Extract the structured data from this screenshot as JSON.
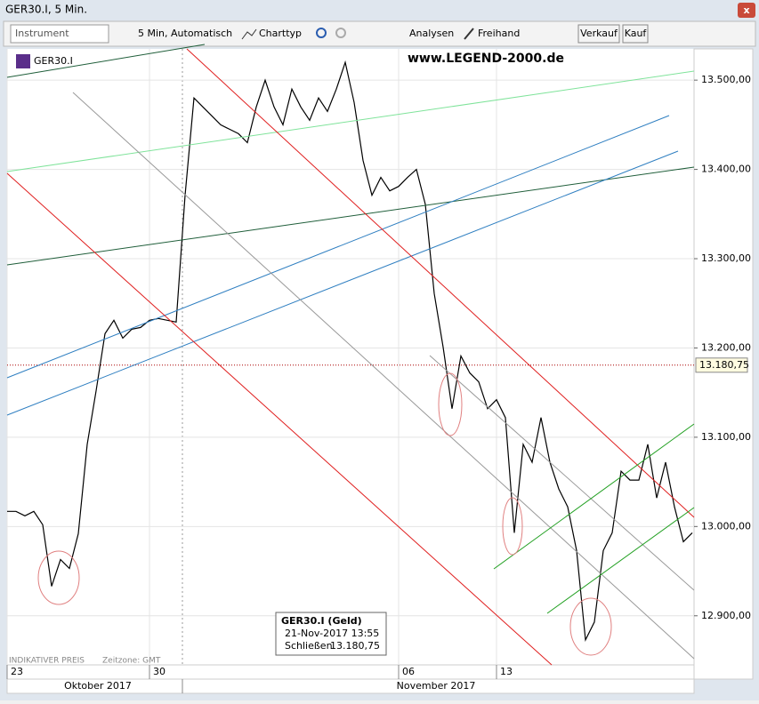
{
  "window": {
    "title": "GER30.I, 5 Min."
  },
  "toolbar": {
    "instrument": "Instrument",
    "interval": "5 Min,  Automatisch",
    "chart_type": "Charttyp",
    "analyses": "Analysen",
    "freehand": "Freihand",
    "sell": "Verkauf",
    "buy": "Kauf"
  },
  "symbol": "GER30.I",
  "watermark": "www.LEGEND-2000.de",
  "footer": {
    "price_note": "INDIKATIVER PREIS",
    "timezone": "Zeitzone: GMT",
    "months": [
      "Oktober 2017",
      "November 2017"
    ]
  },
  "tooltip": {
    "title": "GER30.I (Geld)",
    "time": "21-Nov-2017 13:55",
    "field": "Schließen",
    "price": "13.180,75"
  },
  "chart_data": {
    "type": "line",
    "color": "#000000",
    "categories": [
      "23",
      null,
      null,
      null,
      null,
      null,
      null,
      null,
      null,
      null,
      null,
      null,
      null,
      null,
      null,
      null,
      "30",
      null,
      null,
      null,
      null,
      null,
      null,
      null,
      null,
      null,
      null,
      null,
      null,
      null,
      null,
      null,
      null,
      null,
      null,
      null,
      null,
      null,
      null,
      null,
      null,
      null,
      null,
      null,
      "06",
      null,
      null,
      null,
      null,
      null,
      null,
      null,
      null,
      null,
      null,
      "13",
      null,
      null,
      null,
      null,
      null,
      null,
      null,
      null,
      null,
      null,
      null,
      null,
      null,
      null,
      null,
      null,
      null,
      null,
      null,
      null,
      null,
      null
    ],
    "values": [
      13017,
      13017,
      13012,
      13017,
      13002,
      12933,
      12963,
      12953,
      12992,
      13092,
      13152,
      13216,
      13231,
      13211,
      13221,
      13223,
      13231,
      13233,
      13231,
      13229,
      13371,
      13480,
      13470,
      13460,
      13450,
      13445,
      13440,
      13430,
      13470,
      13500,
      13470,
      13450,
      13490,
      13470,
      13455,
      13480,
      13465,
      13490,
      13520,
      13475,
      13410,
      13371,
      13391,
      13376,
      13381,
      13391,
      13400,
      13361,
      13261,
      13201,
      13132,
      13191,
      13172,
      13162,
      13132,
      13142,
      13122,
      12993,
      13092,
      13072,
      13122,
      13072,
      13042,
      13022,
      12973,
      12873,
      12893,
      12973,
      12993,
      13062,
      13052,
      13052,
      13092,
      13032,
      13072,
      13022,
      12983,
      12993
    ],
    "ylim": [
      12845,
      13535
    ],
    "yticks": [
      {
        "value": 12900,
        "label": "12.900,00"
      },
      {
        "value": 13000,
        "label": "13.000,00"
      },
      {
        "value": 13100,
        "label": "13.100,00"
      },
      {
        "value": 13200,
        "label": "13.200,00"
      },
      {
        "value": 13300,
        "label": "13.300,00"
      },
      {
        "value": 13400,
        "label": "13.400,00"
      },
      {
        "value": 13500,
        "label": "13.500,00"
      }
    ],
    "current_price": {
      "value": 13180.75,
      "label": "13.180,75"
    },
    "grid": true
  }
}
